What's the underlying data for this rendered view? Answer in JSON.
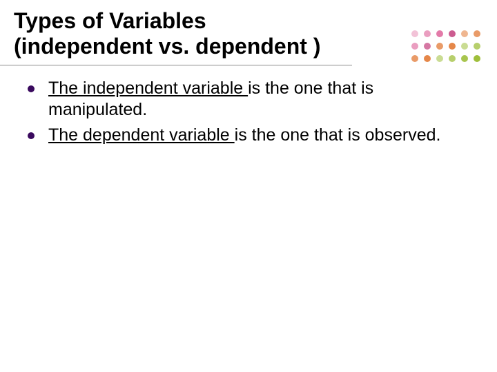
{
  "title": {
    "line1": "Types of Variables",
    "line2": "(independent vs. dependent )",
    "fontsize": 32,
    "color": "#000000",
    "underline_color": "#888888"
  },
  "bullets": [
    {
      "underlined": "The independent variable ",
      "rest": "is the one that is manipulated."
    },
    {
      "underlined": "The dependent variable ",
      "rest": "is the one that is observed."
    }
  ],
  "bullet_style": {
    "marker_color": "#3a0a5e",
    "fontsize": 25,
    "text_color": "#000000"
  },
  "decoration": {
    "rows": 3,
    "cols": 6,
    "dot_size": 10,
    "colors": [
      [
        "#d94f8c",
        "#d94f8c",
        "#d94f8c",
        "#c74a84",
        "#e27a35",
        "#e27a35"
      ],
      [
        "#d94f8c",
        "#c74a84",
        "#e27a35",
        "#e27a35",
        "#9fbf3b",
        "#9fbf3b"
      ],
      [
        "#e27a35",
        "#e27a35",
        "#9fbf3b",
        "#9fbf3b",
        "#9fbf3b",
        "#9fbf3b"
      ]
    ],
    "opacities": [
      [
        0.35,
        0.55,
        0.75,
        0.9,
        0.55,
        0.75
      ],
      [
        0.55,
        0.75,
        0.75,
        0.9,
        0.55,
        0.75
      ],
      [
        0.75,
        0.9,
        0.55,
        0.75,
        0.9,
        1.0
      ]
    ]
  }
}
